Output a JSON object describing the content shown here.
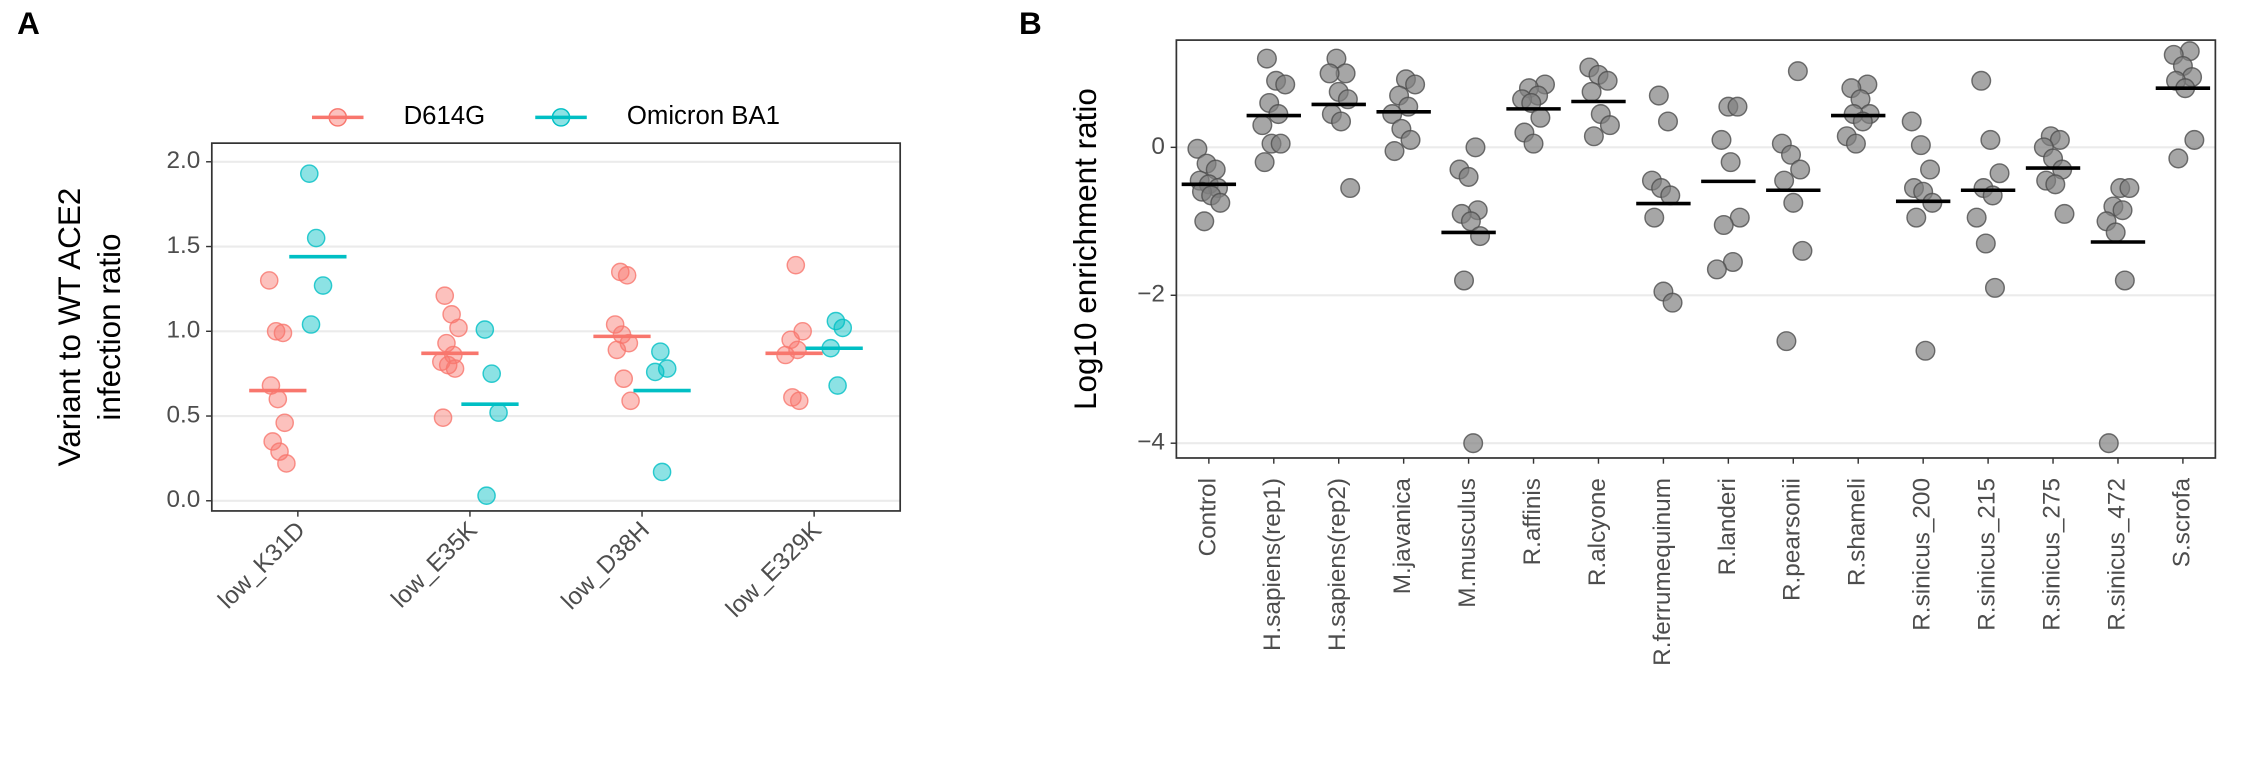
{
  "chart_data": [
    {
      "type": "strip",
      "panel_label": "A",
      "ylabel": [
        "Variant to WT ACE2",
        "infection ratio"
      ],
      "categories": [
        "low_K31D",
        "low_E35K",
        "low_D38H",
        "low_E329K"
      ],
      "ylim": [
        -0.06,
        2.11
      ],
      "yticks": [
        {
          "value": 0,
          "label": "0.0"
        },
        {
          "value": 0.5,
          "label": "0.5"
        },
        {
          "value": 1,
          "label": "1.0"
        },
        {
          "value": 1.5,
          "label": "1.5"
        },
        {
          "value": 2,
          "label": "2.0"
        }
      ],
      "grid": true,
      "legend": "top",
      "series": [
        {
          "name": "D614G",
          "color": "#f8766d",
          "values": [
            0.65,
            0.87,
            0.97,
            0.87
          ],
          "points": [
            [
              1.3,
              1.0,
              0.99,
              0.68,
              0.6,
              0.46,
              0.35,
              0.29,
              0.22
            ],
            [
              1.21,
              1.1,
              1.02,
              0.93,
              0.86,
              0.82,
              0.8,
              0.78,
              0.49
            ],
            [
              1.35,
              1.33,
              1.04,
              0.98,
              0.93,
              0.89,
              0.72,
              0.59
            ],
            [
              1.39,
              1.0,
              0.95,
              0.89,
              0.86,
              0.61,
              0.59
            ]
          ]
        },
        {
          "name": "Omicron BA1",
          "color": "#00bfc4",
          "values": [
            1.44,
            0.57,
            0.65,
            0.9
          ],
          "points": [
            [
              1.93,
              1.55,
              1.27,
              1.04
            ],
            [
              1.01,
              0.75,
              0.52,
              0.03
            ],
            [
              0.88,
              0.78,
              0.76,
              0.17
            ],
            [
              1.06,
              1.02,
              0.9,
              0.68
            ]
          ]
        }
      ]
    },
    {
      "type": "strip",
      "panel_label": "B",
      "ylabel": [
        "Log10 enrichment ratio"
      ],
      "categories": [
        "Control",
        "H.sapiens(rep1)",
        "H.sapiens(rep2)",
        "M.javanica",
        "M.musculus",
        "R.affinis",
        "R.alcyone",
        "R.ferrumequinum",
        "R.landeri",
        "R.pearsonii",
        "R.shameli",
        "R.sinicus_200",
        "R.sinicus_215",
        "R.sinicus_275",
        "R.sinicus_472",
        "S.scrofa"
      ],
      "ylim": [
        -4.2,
        1.45
      ],
      "yticks": [
        {
          "value": -4,
          "label": "−4"
        },
        {
          "value": -2,
          "label": "−2"
        },
        0
      ],
      "grid": true,
      "series": [
        {
          "color": "#808080",
          "values": [
            -0.5,
            0.43,
            0.58,
            0.48,
            -1.15,
            0.52,
            0.62,
            -0.76,
            -0.46,
            -0.58,
            0.43,
            -0.73,
            -0.58,
            -0.28,
            -1.28,
            0.8
          ],
          "points": [
            [
              -0.02,
              -0.22,
              -0.3,
              -0.45,
              -0.5,
              -0.55,
              -0.6,
              -0.65,
              -0.75,
              -1.0
            ],
            [
              1.2,
              0.9,
              0.85,
              0.6,
              0.45,
              0.3,
              0.05,
              0.05,
              -0.2
            ],
            [
              1.2,
              1.0,
              1.0,
              0.75,
              0.65,
              0.45,
              0.35,
              -0.55
            ],
            [
              0.92,
              0.85,
              0.7,
              0.55,
              0.45,
              0.25,
              0.1,
              -0.05
            ],
            [
              0.0,
              -0.3,
              -0.4,
              -0.85,
              -0.9,
              -1.0,
              -1.2,
              -1.8,
              -4.0
            ],
            [
              0.85,
              0.8,
              0.7,
              0.65,
              0.6,
              0.4,
              0.2,
              0.05
            ],
            [
              1.08,
              0.98,
              0.9,
              0.75,
              0.45,
              0.3,
              0.15
            ],
            [
              0.7,
              0.35,
              -0.45,
              -0.55,
              -0.65,
              -0.95,
              -1.95,
              -2.1
            ],
            [
              0.55,
              0.55,
              0.1,
              -0.2,
              -0.95,
              -1.05,
              -1.55,
              -1.65
            ],
            [
              1.03,
              0.05,
              -0.1,
              -0.3,
              -0.45,
              -0.75,
              -1.4,
              -2.62
            ],
            [
              0.85,
              0.8,
              0.65,
              0.45,
              0.45,
              0.35,
              0.15,
              0.05
            ],
            [
              0.35,
              0.03,
              -0.3,
              -0.55,
              -0.6,
              -0.75,
              -0.95,
              -2.75
            ],
            [
              0.9,
              0.1,
              -0.35,
              -0.55,
              -0.65,
              -0.95,
              -1.3,
              -1.9
            ],
            [
              0.15,
              0.1,
              0.0,
              -0.15,
              -0.3,
              -0.45,
              -0.5,
              -0.9
            ],
            [
              -0.55,
              -0.55,
              -0.8,
              -0.85,
              -1.0,
              -1.15,
              -1.8,
              -4.0
            ],
            [
              1.3,
              1.25,
              1.1,
              0.95,
              0.9,
              0.8,
              0.1,
              -0.15
            ]
          ]
        }
      ]
    }
  ]
}
